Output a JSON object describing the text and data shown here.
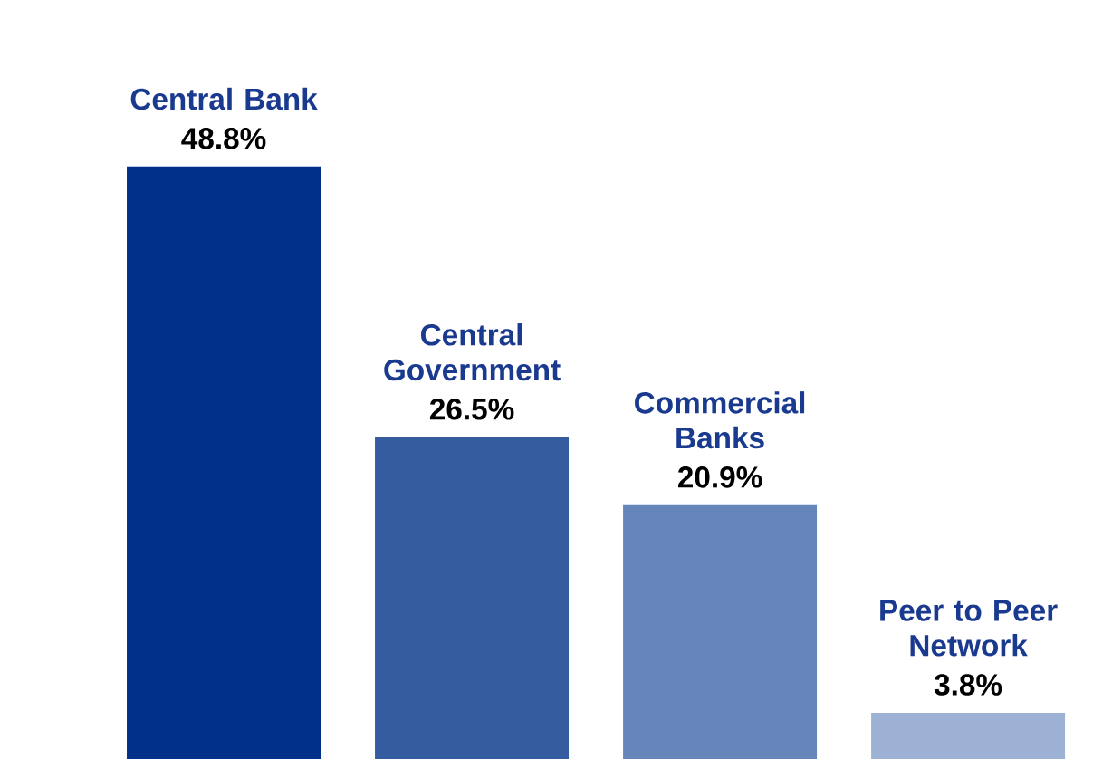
{
  "chart_data": {
    "type": "bar",
    "categories": [
      "Central Bank",
      "Central Government",
      "Commercial Banks",
      "Peer to Peer Network"
    ],
    "values": [
      48.8,
      26.5,
      20.9,
      3.8
    ],
    "value_labels": [
      "48.8%",
      "26.5%",
      "20.9%",
      "3.8%"
    ],
    "colors": [
      "#00308a",
      "#365ca0",
      "#6686bb",
      "#9db1d4"
    ]
  }
}
